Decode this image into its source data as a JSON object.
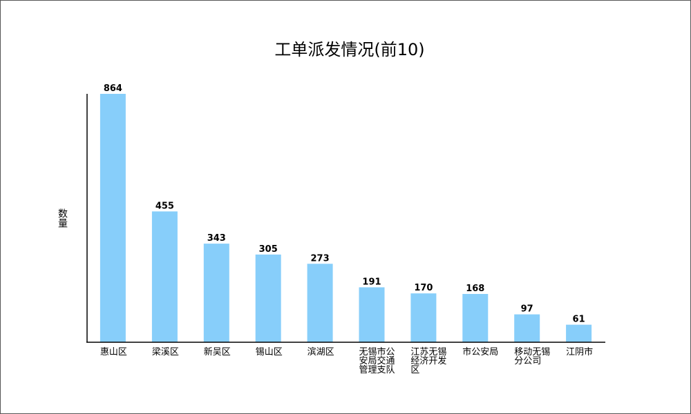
{
  "chart_data": {
    "type": "bar",
    "title": "工单派发情况(前10)",
    "ylabel": "数量",
    "xlabel": "",
    "categories": [
      [
        "惠山区"
      ],
      [
        "梁溪区"
      ],
      [
        "新吴区"
      ],
      [
        "锡山区"
      ],
      [
        "滨湖区"
      ],
      [
        "无锡市公",
        "安局交通",
        "管理支队"
      ],
      [
        "江苏无锡",
        "经济开发",
        "区"
      ],
      [
        "市公安局"
      ],
      [
        "移动无锡",
        "分公司"
      ],
      [
        "江阴市"
      ]
    ],
    "values": [
      864,
      455,
      343,
      305,
      273,
      191,
      170,
      168,
      97,
      61
    ],
    "ylim": [
      0,
      864
    ],
    "grid": false,
    "legend": "none",
    "colors": {
      "bar": "#87cefa",
      "axis": "#000000",
      "border": "#555555"
    }
  }
}
